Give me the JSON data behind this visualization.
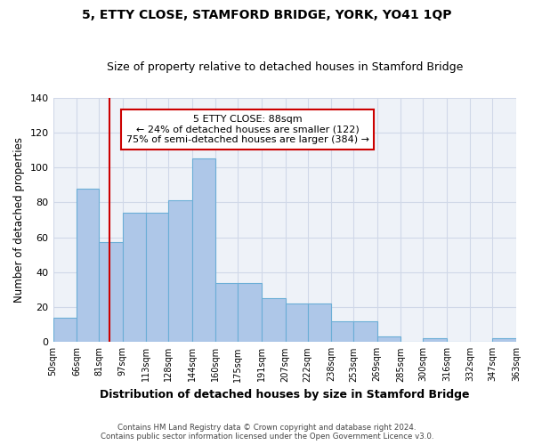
{
  "title": "5, ETTY CLOSE, STAMFORD BRIDGE, YORK, YO41 1QP",
  "subtitle": "Size of property relative to detached houses in Stamford Bridge",
  "xlabel": "Distribution of detached houses by size in Stamford Bridge",
  "ylabel": "Number of detached properties",
  "footer_line1": "Contains HM Land Registry data © Crown copyright and database right 2024.",
  "footer_line2": "Contains public sector information licensed under the Open Government Licence v3.0.",
  "annotation_line1": "5 ETTY CLOSE: 88sqm",
  "annotation_line2": "← 24% of detached houses are smaller (122)",
  "annotation_line3": "75% of semi-detached houses are larger (384) →",
  "property_size": 88,
  "bar_left_edges": [
    50,
    66,
    81,
    97,
    113,
    128,
    144,
    160,
    175,
    191,
    207,
    222,
    238,
    253,
    269,
    285,
    300,
    316,
    332,
    347
  ],
  "bar_widths": [
    16,
    15,
    16,
    16,
    15,
    16,
    16,
    15,
    16,
    16,
    15,
    16,
    15,
    16,
    16,
    15,
    16,
    16,
    15,
    16
  ],
  "bar_heights": [
    14,
    88,
    57,
    74,
    74,
    81,
    105,
    34,
    34,
    25,
    22,
    22,
    12,
    12,
    3,
    0,
    2,
    0,
    0,
    2
  ],
  "tick_labels": [
    "50sqm",
    "66sqm",
    "81sqm",
    "97sqm",
    "113sqm",
    "128sqm",
    "144sqm",
    "160sqm",
    "175sqm",
    "191sqm",
    "207sqm",
    "222sqm",
    "238sqm",
    "253sqm",
    "269sqm",
    "285sqm",
    "300sqm",
    "316sqm",
    "332sqm",
    "347sqm",
    "363sqm"
  ],
  "bar_color": "#aec7e8",
  "bar_edge_color": "#6baed6",
  "highlight_line_color": "#cc0000",
  "annotation_box_color": "#cc0000",
  "grid_color": "#d0d8e8",
  "bg_color": "#eef2f8",
  "ylim": [
    0,
    140
  ],
  "yticks": [
    0,
    20,
    40,
    60,
    80,
    100,
    120,
    140
  ]
}
